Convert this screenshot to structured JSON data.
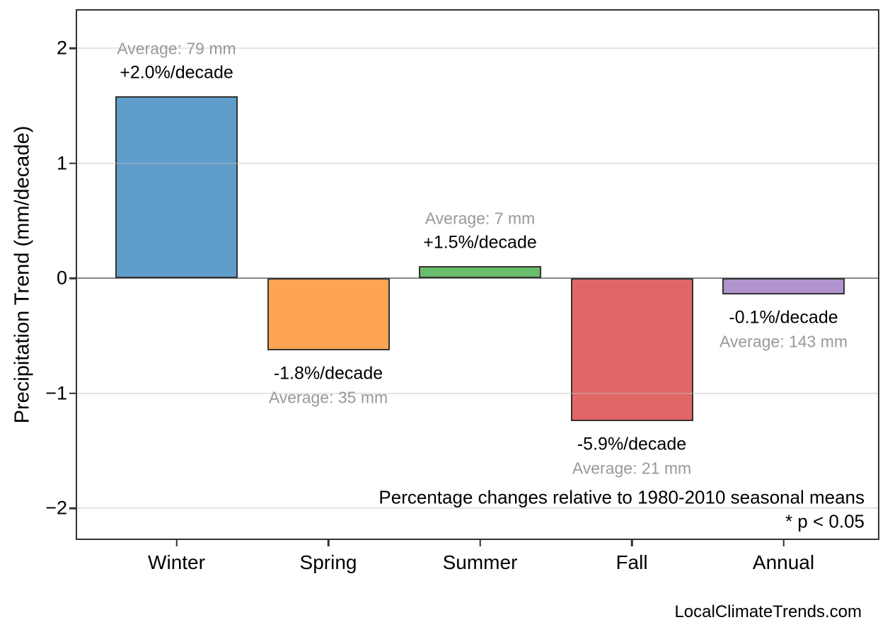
{
  "chart_data": {
    "type": "bar",
    "title": "",
    "categories": [
      "Winter",
      "Spring",
      "Summer",
      "Fall",
      "Annual"
    ],
    "values": [
      1.58,
      -0.63,
      0.105,
      -1.24,
      -0.143
    ],
    "bar_colors": [
      "#5E9DC9",
      "#FDA552",
      "#69BD6C",
      "#E16666",
      "#B194CD"
    ],
    "bar_edge_color": "#333333",
    "annotations": [
      {
        "percent": "+2.0%/decade",
        "average": "Average: 79 mm"
      },
      {
        "percent": "-1.8%/decade",
        "average": "Average: 35 mm"
      },
      {
        "percent": "+1.5%/decade",
        "average": "Average: 7 mm"
      },
      {
        "percent": "-5.9%/decade",
        "average": "Average: 21 mm"
      },
      {
        "percent": "-0.1%/decade",
        "average": "Average: 143 mm"
      }
    ],
    "ylabel": "Precipitation Trend (mm/decade)",
    "xlabel": "",
    "yticks": [
      {
        "value": 2,
        "label": "2"
      },
      {
        "value": 1,
        "label": "1"
      },
      {
        "value": 0,
        "label": "0"
      },
      {
        "value": -1,
        "label": "−1"
      },
      {
        "value": -2,
        "label": "−2"
      }
    ],
    "ylim": [
      -2.3,
      2.34
    ],
    "grid": true,
    "legend": false,
    "zero_line_color": "#888888",
    "annotation_percent_color": "#000000",
    "annotation_average_color": "#999999",
    "footnote_line1": "Percentage changes relative to 1980-2010 seasonal means",
    "footnote_line2": "* p < 0.05",
    "watermark": "LocalClimateTrends.com"
  }
}
